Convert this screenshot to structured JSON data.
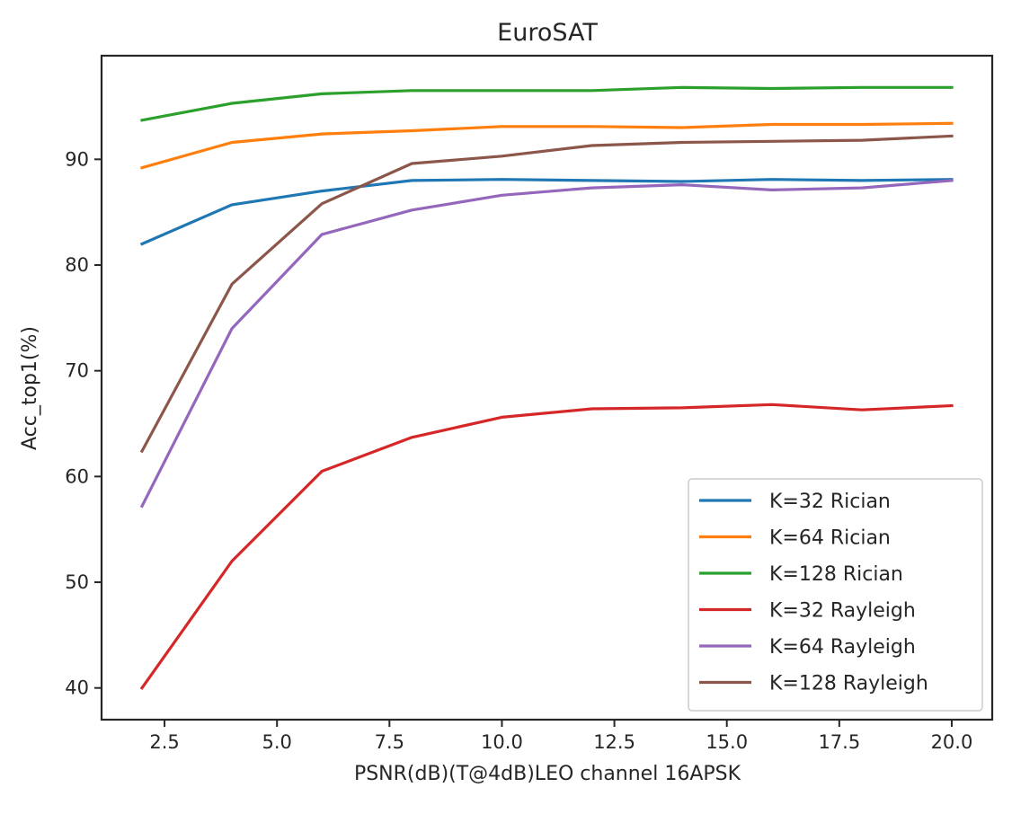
{
  "chart_data": {
    "type": "line",
    "title": "EuroSAT",
    "xlabel": "PSNR(dB)(T@4dB)LEO channel 16APSK",
    "ylabel": "Acc_top1(%)",
    "xlim": [
      1.1,
      20.9
    ],
    "ylim": [
      37,
      99.8
    ],
    "xticks": [
      2.5,
      5.0,
      7.5,
      10.0,
      12.5,
      15.0,
      17.5,
      20.0
    ],
    "xtick_labels": [
      "2.5",
      "5.0",
      "7.5",
      "10.0",
      "12.5",
      "15.0",
      "17.5",
      "20.0"
    ],
    "yticks": [
      40,
      50,
      60,
      70,
      80,
      90
    ],
    "ytick_labels": [
      "40",
      "50",
      "60",
      "70",
      "80",
      "90"
    ],
    "grid": false,
    "legend_position": "lower-right",
    "x": [
      2,
      4,
      6,
      8,
      10,
      12,
      14,
      16,
      18,
      20
    ],
    "series": [
      {
        "name": "K=32 Rician",
        "color": "#1f77b4",
        "values": [
          82.0,
          85.7,
          87.0,
          88.0,
          88.1,
          88.0,
          87.9,
          88.1,
          88.0,
          88.1
        ]
      },
      {
        "name": "K=64 Rician",
        "color": "#ff7f0e",
        "values": [
          89.2,
          91.6,
          92.4,
          92.7,
          93.1,
          93.1,
          93.0,
          93.3,
          93.3,
          93.4
        ]
      },
      {
        "name": "K=128 Rician",
        "color": "#2ca02c",
        "values": [
          93.7,
          95.3,
          96.2,
          96.5,
          96.5,
          96.5,
          96.8,
          96.7,
          96.8,
          96.8
        ]
      },
      {
        "name": "K=32 Rayleigh",
        "color": "#d62728",
        "values": [
          40.0,
          52.0,
          60.5,
          63.7,
          65.6,
          66.4,
          66.5,
          66.8,
          66.3,
          66.7
        ]
      },
      {
        "name": "K=64 Rayleigh",
        "color": "#9467bd",
        "values": [
          57.2,
          74.0,
          82.9,
          85.2,
          86.6,
          87.3,
          87.6,
          87.1,
          87.3,
          88.0
        ]
      },
      {
        "name": "K=128 Rayleigh",
        "color": "#8c564b",
        "values": [
          62.4,
          78.2,
          85.8,
          89.6,
          90.3,
          91.3,
          91.6,
          91.7,
          91.8,
          92.2
        ]
      }
    ]
  }
}
